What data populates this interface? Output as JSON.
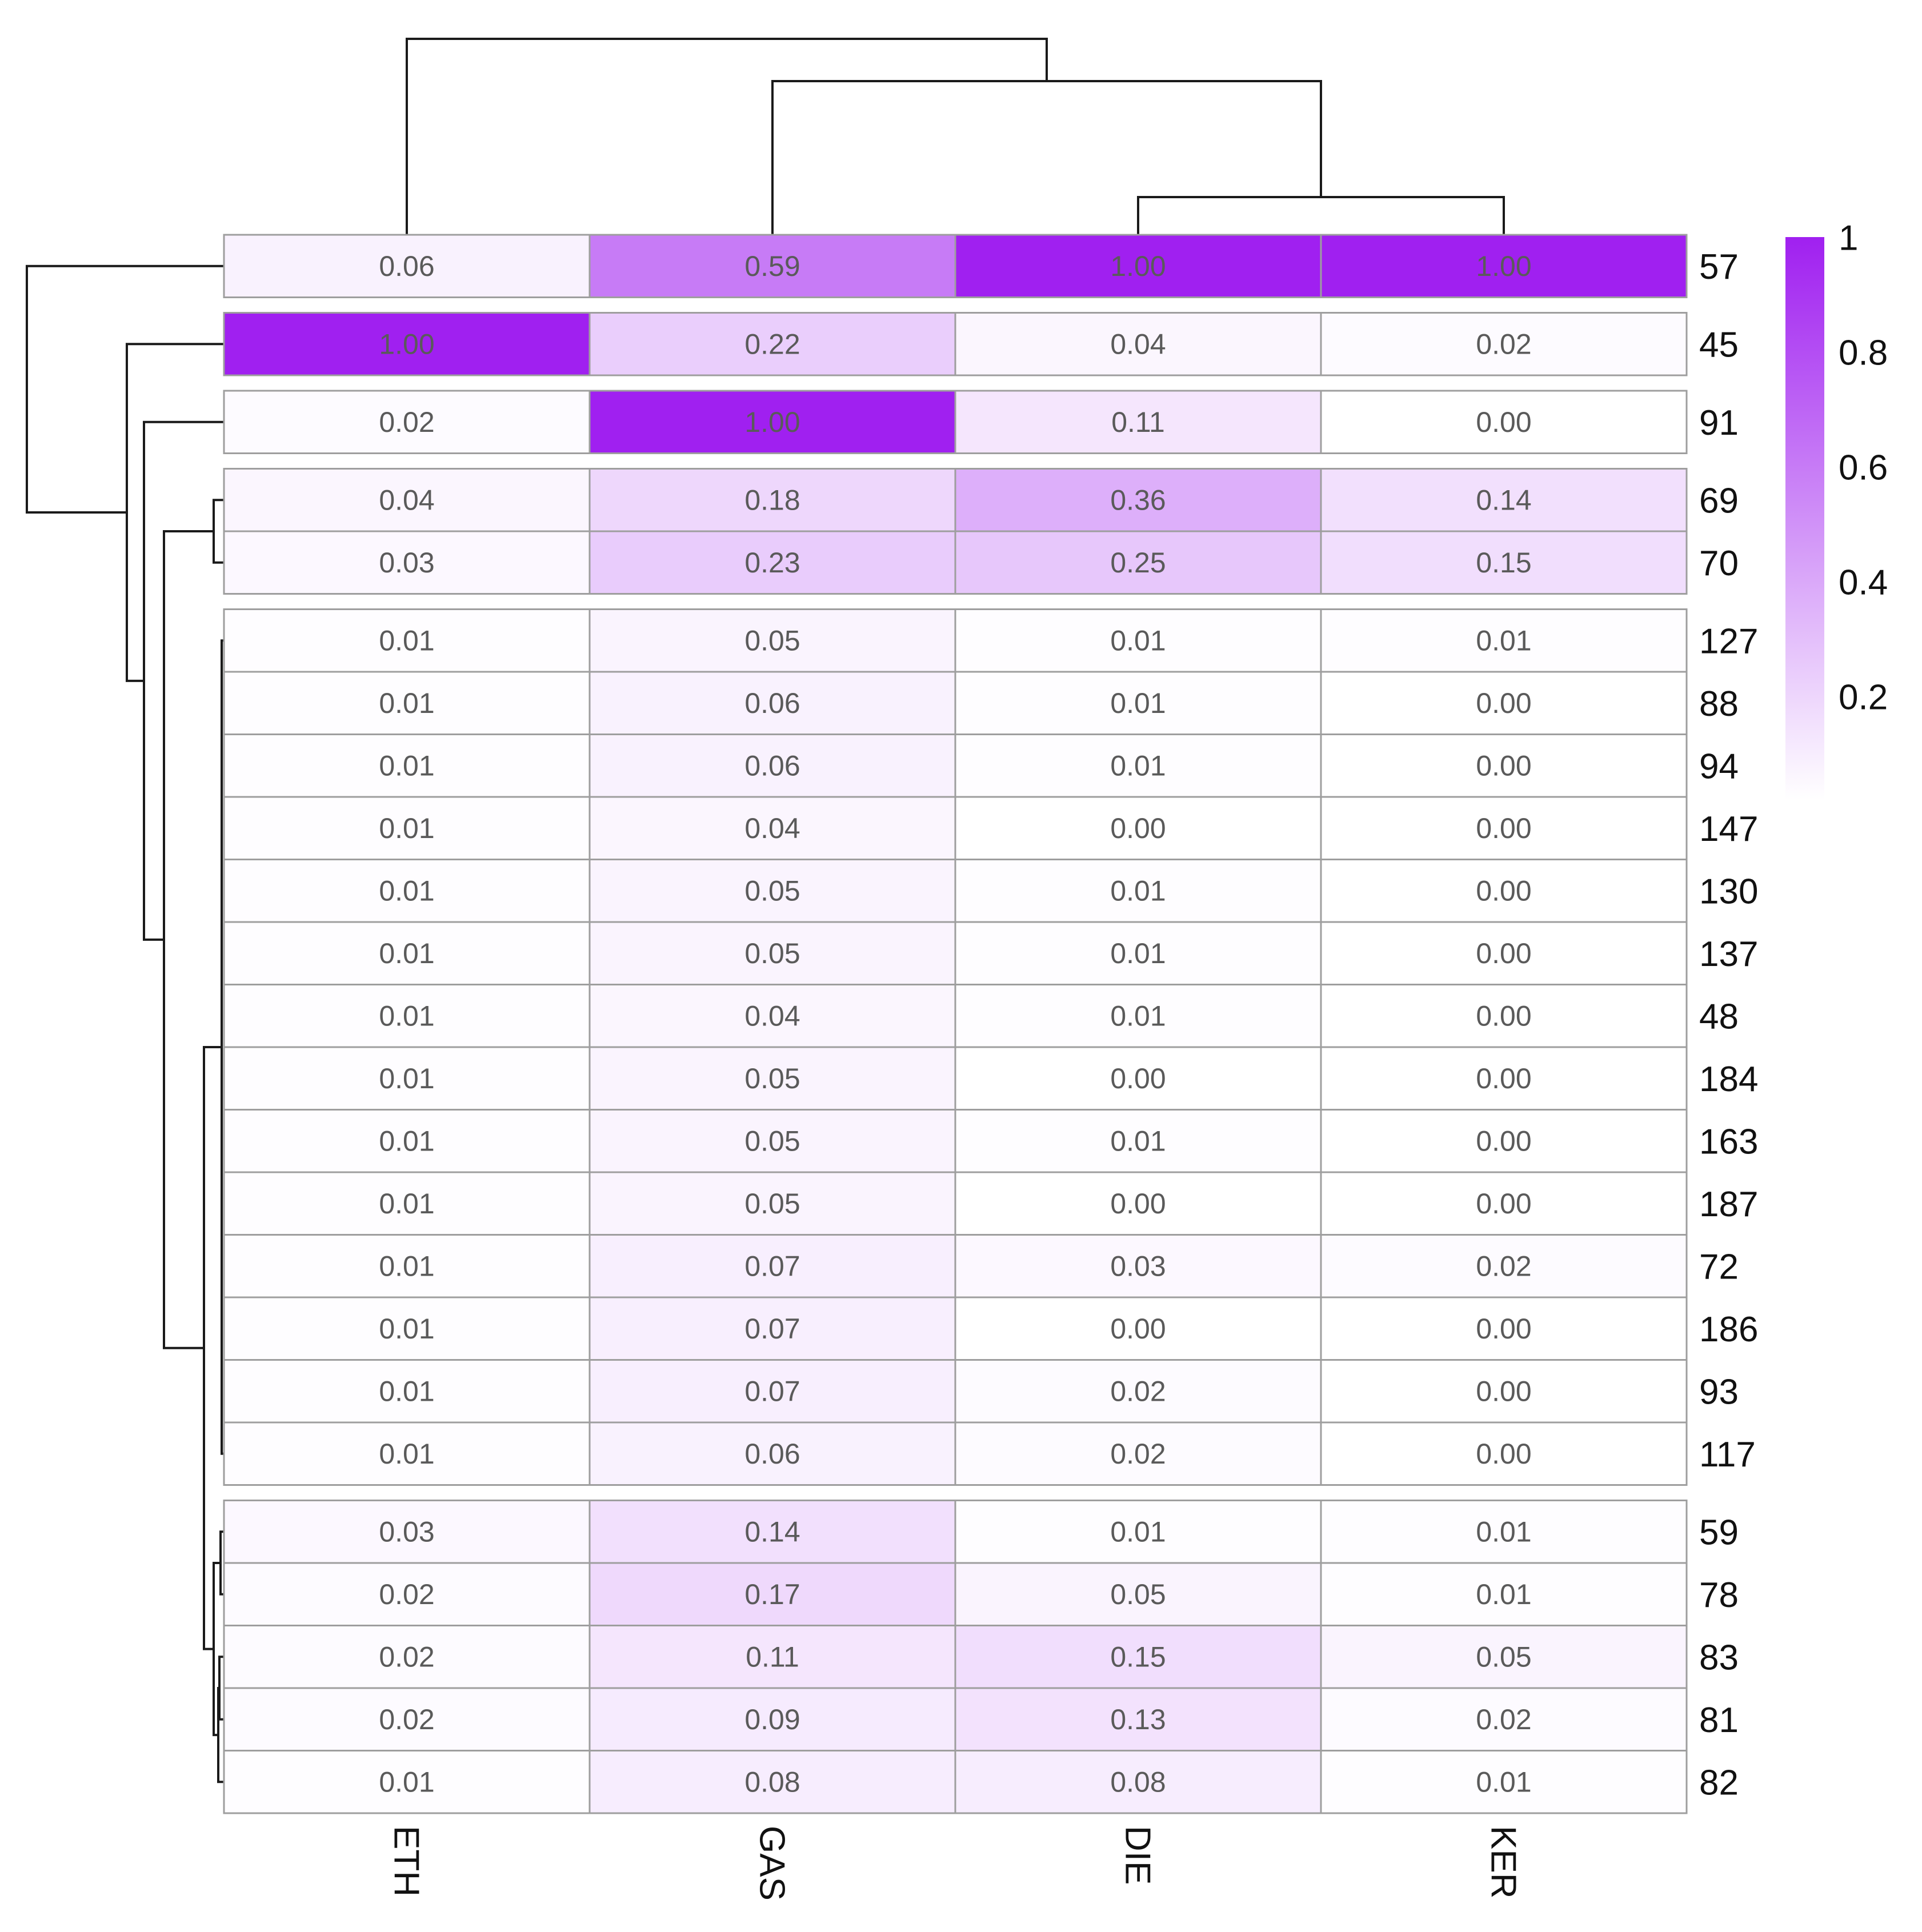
{
  "colors": {
    "low": "#ffffff",
    "high": "#a020f0",
    "cell_border": "#9e9e9e",
    "dendrogram": "#1a1a1a"
  },
  "chart_data": {
    "type": "heatmap",
    "title": "",
    "columns": [
      "ETH",
      "GAS",
      "DIE",
      "KER"
    ],
    "rows": [
      "57",
      "45",
      "91",
      "69",
      "70",
      "127",
      "88",
      "94",
      "147",
      "130",
      "137",
      "48",
      "184",
      "163",
      "187",
      "72",
      "186",
      "93",
      "117",
      "59",
      "78",
      "83",
      "81",
      "82"
    ],
    "values": [
      [
        0.06,
        0.59,
        1.0,
        1.0
      ],
      [
        1.0,
        0.22,
        0.04,
        0.02
      ],
      [
        0.02,
        1.0,
        0.11,
        0.0
      ],
      [
        0.04,
        0.18,
        0.36,
        0.14
      ],
      [
        0.03,
        0.23,
        0.25,
        0.15
      ],
      [
        0.01,
        0.05,
        0.01,
        0.01
      ],
      [
        0.01,
        0.06,
        0.01,
        0.0
      ],
      [
        0.01,
        0.06,
        0.01,
        0.0
      ],
      [
        0.01,
        0.04,
        0.0,
        0.0
      ],
      [
        0.01,
        0.05,
        0.01,
        0.0
      ],
      [
        0.01,
        0.05,
        0.01,
        0.0
      ],
      [
        0.01,
        0.04,
        0.01,
        0.0
      ],
      [
        0.01,
        0.05,
        0.0,
        0.0
      ],
      [
        0.01,
        0.05,
        0.01,
        0.0
      ],
      [
        0.01,
        0.05,
        0.0,
        0.0
      ],
      [
        0.01,
        0.07,
        0.03,
        0.02
      ],
      [
        0.01,
        0.07,
        0.0,
        0.0
      ],
      [
        0.01,
        0.07,
        0.02,
        0.0
      ],
      [
        0.01,
        0.06,
        0.02,
        0.0
      ],
      [
        0.03,
        0.14,
        0.01,
        0.01
      ],
      [
        0.02,
        0.17,
        0.05,
        0.01
      ],
      [
        0.02,
        0.11,
        0.15,
        0.05
      ],
      [
        0.02,
        0.09,
        0.13,
        0.02
      ],
      [
        0.01,
        0.08,
        0.08,
        0.01
      ]
    ],
    "row_groups": [
      1,
      1,
      1,
      2,
      14,
      5
    ],
    "color_scale": {
      "min": 0,
      "max": 1,
      "ticks": [
        0.2,
        0.4,
        0.6,
        0.8,
        1
      ],
      "tick_labels": [
        "0.2",
        "0.4",
        "0.6",
        "0.8",
        "1"
      ]
    },
    "legend_position": "right",
    "column_dendrogram": true,
    "row_dendrogram": true
  }
}
